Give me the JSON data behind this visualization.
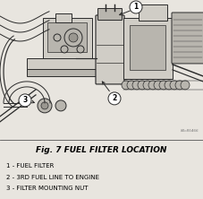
{
  "title": "Fig. 7 FUEL FILTER LOCATION",
  "legend_items": [
    "1 - FUEL FILTER",
    "2 - 3RD FUEL LINE TO ENGINE",
    "3 - FILTER MOUNTING NUT"
  ],
  "callout_numbers": [
    "1",
    "2",
    "3"
  ],
  "watermark": "80c85466",
  "bg_color": "#e8e5df",
  "diagram_bg": "#dedad4",
  "title_fontsize": 6.5,
  "legend_fontsize": 5.0,
  "callout_fontsize": 5.5,
  "fig_width": 2.27,
  "fig_height": 2.22,
  "dpi": 100
}
